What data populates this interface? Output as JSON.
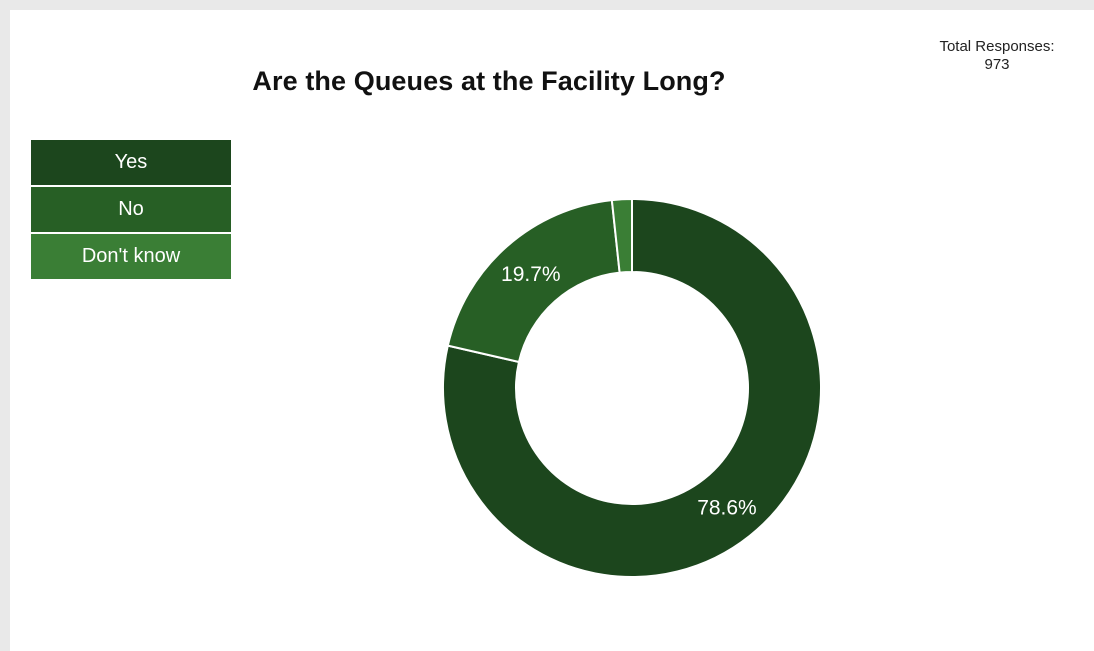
{
  "total": {
    "label": "Total Responses:",
    "value": "973"
  },
  "chart_data": {
    "type": "pie",
    "title": "Are the Queues at the Facility Long?",
    "hole": true,
    "legend_position": "top-left",
    "categories": [
      "Yes",
      "No",
      "Don't know"
    ],
    "values": [
      78.6,
      19.7,
      1.7
    ],
    "value_labels": [
      "78.6%",
      "19.7%",
      ""
    ],
    "colors": [
      "#1c461d",
      "#275f25",
      "#3a7e35"
    ]
  }
}
